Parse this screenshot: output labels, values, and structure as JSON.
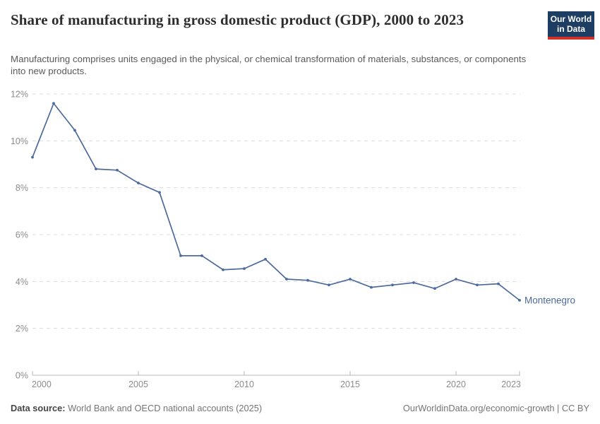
{
  "header": {
    "title": "Share of manufacturing in gross domestic product (GDP), 2000 to 2023",
    "subtitle": "Manufacturing comprises units engaged in the physical, or chemical transformation of materials, substances, or components into new products.",
    "logo": {
      "line1": "Our World",
      "line2": "in Data",
      "bg_color": "#1d3d63",
      "stripe_color": "#cf3129",
      "text_color": "#ffffff"
    }
  },
  "chart_data": {
    "type": "line",
    "title": "Share of manufacturing in gross domestic product (GDP), 2000 to 2023",
    "xlabel": "",
    "ylabel": "",
    "x": [
      2000,
      2001,
      2002,
      2003,
      2004,
      2005,
      2006,
      2007,
      2008,
      2009,
      2010,
      2011,
      2012,
      2013,
      2014,
      2015,
      2016,
      2017,
      2018,
      2019,
      2020,
      2021,
      2022,
      2023
    ],
    "series": [
      {
        "name": "Montenegro",
        "color": "#4c6a9c",
        "values": [
          9.3,
          11.6,
          10.45,
          8.8,
          8.75,
          8.2,
          7.8,
          5.1,
          5.1,
          4.5,
          4.55,
          4.95,
          4.1,
          4.05,
          3.85,
          4.1,
          3.75,
          3.85,
          3.95,
          3.7,
          4.1,
          3.85,
          3.9,
          3.2
        ]
      }
    ],
    "xlim": [
      2000,
      2023
    ],
    "ylim": [
      0,
      12
    ],
    "x_ticks": [
      2000,
      2005,
      2010,
      2015,
      2020,
      2023
    ],
    "y_ticks": [
      0,
      2,
      4,
      6,
      8,
      10,
      12
    ],
    "y_tick_suffix": "%",
    "grid": "horizontal-dashed",
    "legend_position": "series-end-label",
    "grid_color": "#dcdcdc",
    "axis_color": "#b8b8b8",
    "tick_label_color": "#8c8c8c"
  },
  "footer": {
    "datasource_label": "Data source:",
    "datasource_text": "World Bank and OECD national accounts (2025)",
    "credit_text": "OurWorldinData.org/economic-growth | CC BY"
  }
}
